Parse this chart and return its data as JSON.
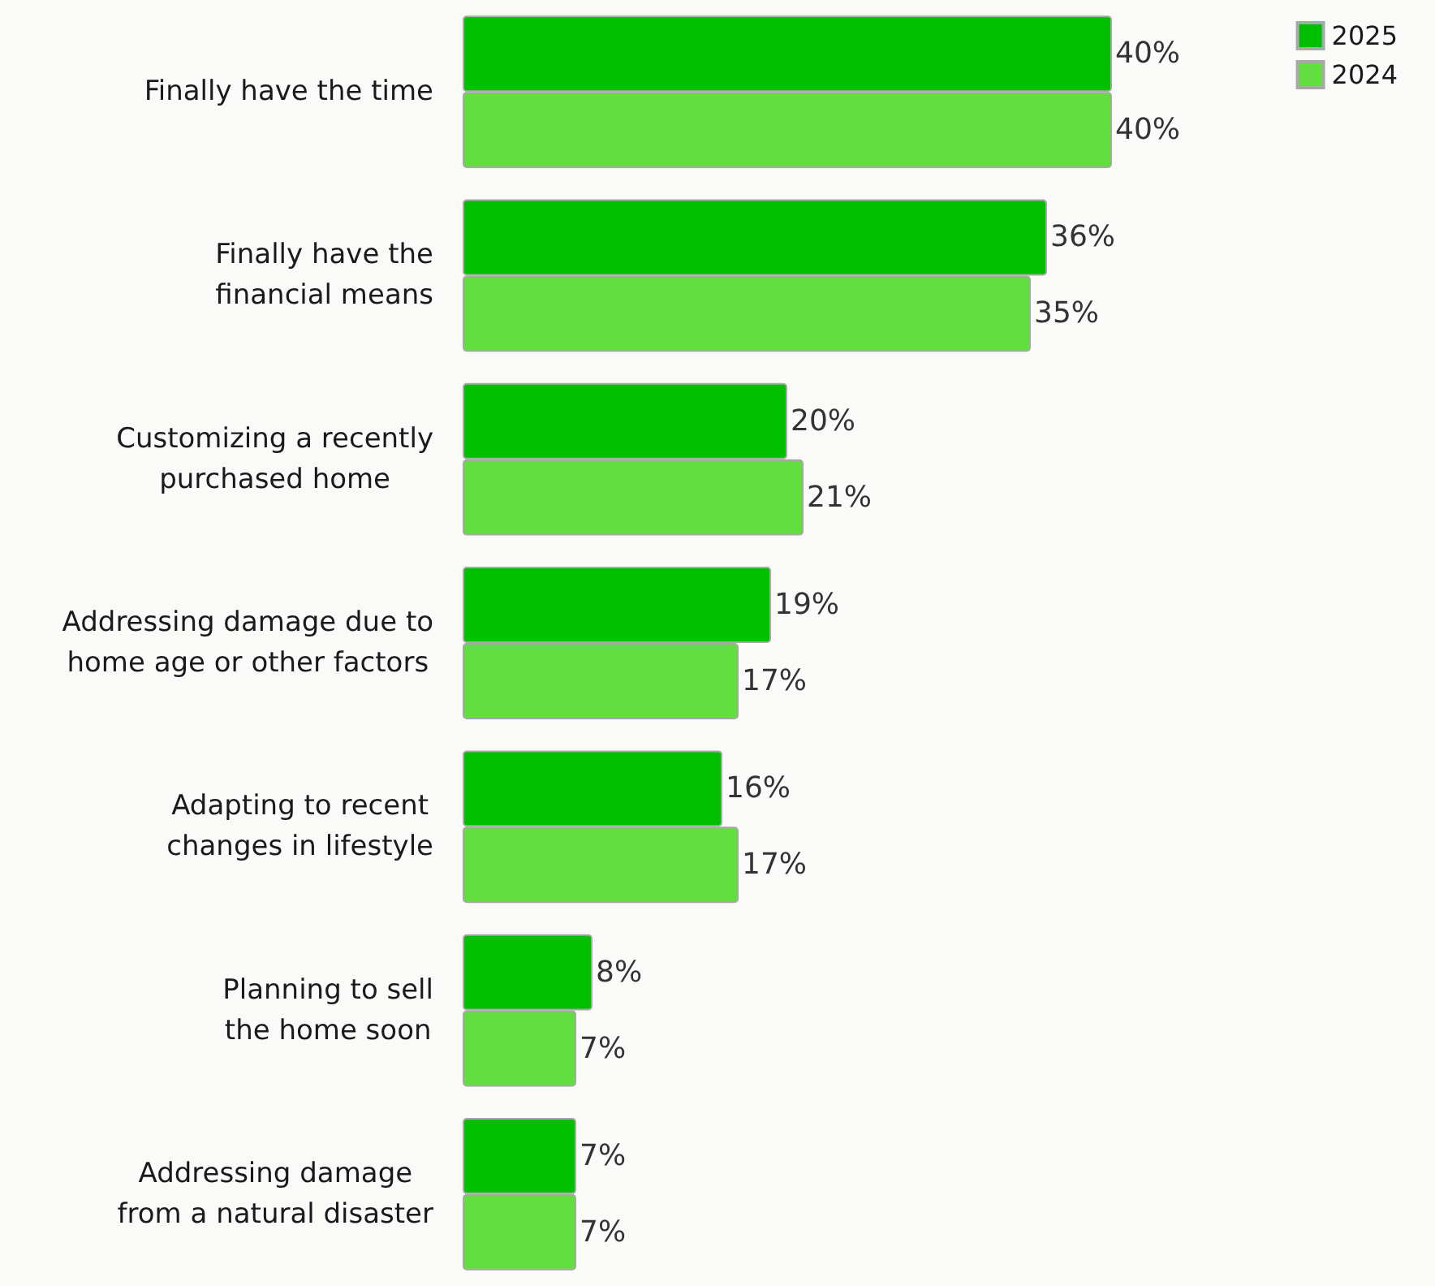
{
  "chart_data": {
    "type": "bar",
    "orientation": "horizontal",
    "categories": [
      "Finally have the time",
      "Finally have the financial means",
      "Customizing a recently purchased home",
      "Addressing damage due to home age or other factors",
      "Adapting to recent changes in lifestyle",
      "Planning to sell the home soon",
      "Addressing damage from a natural disaster"
    ],
    "series": [
      {
        "name": "2025",
        "color": "#00bf00",
        "values": [
          40,
          36,
          20,
          19,
          16,
          8,
          7
        ],
        "value_labels": [
          "40%",
          "36%",
          "20%",
          "19%",
          "16%",
          "8%",
          "7%"
        ]
      },
      {
        "name": "2024",
        "color": "#62df3e",
        "values": [
          40,
          35,
          21,
          17,
          17,
          7,
          7
        ],
        "value_labels": [
          "40%",
          "35%",
          "21%",
          "17%",
          "17%",
          "7%",
          "7%"
        ]
      }
    ],
    "legend": "top right"
  }
}
